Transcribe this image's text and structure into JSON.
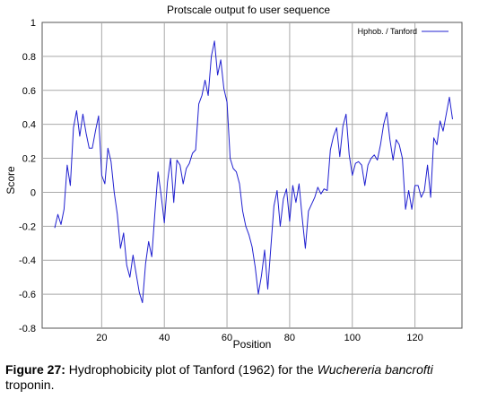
{
  "chart_data": {
    "type": "line",
    "title": "Protscale output fo user sequence",
    "xlabel": "Position",
    "ylabel": "Score",
    "xlim": [
      1,
      135
    ],
    "ylim": [
      -0.8,
      1.0
    ],
    "x_ticks": [
      20,
      40,
      60,
      80,
      100,
      120
    ],
    "y_ticks": [
      -0.8,
      -0.6,
      -0.4,
      -0.2,
      0,
      0.2,
      0.4,
      0.6,
      0.8,
      1.0
    ],
    "y_tick_labels": [
      "-0.8",
      "-0.6",
      "-0.4",
      "-0.2",
      "0",
      "0.2",
      "0.4",
      "0.6",
      "0.8",
      "1"
    ],
    "grid": true,
    "legend_position": "top-right",
    "series": [
      {
        "name": "Hphob. / Tanford",
        "color": "#2020d0",
        "x": [
          5,
          6,
          7,
          8,
          9,
          10,
          11,
          12,
          13,
          14,
          15,
          16,
          17,
          18,
          19,
          20,
          21,
          22,
          23,
          24,
          25,
          26,
          27,
          28,
          29,
          30,
          31,
          32,
          33,
          34,
          35,
          36,
          37,
          38,
          39,
          40,
          41,
          42,
          43,
          44,
          45,
          46,
          47,
          48,
          49,
          50,
          51,
          52,
          53,
          54,
          55,
          56,
          57,
          58,
          59,
          60,
          61,
          62,
          63,
          64,
          65,
          66,
          67,
          68,
          69,
          70,
          71,
          72,
          73,
          74,
          75,
          76,
          77,
          78,
          79,
          80,
          81,
          82,
          83,
          84,
          85,
          86,
          87,
          88,
          89,
          90,
          91,
          92,
          93,
          94,
          95,
          96,
          97,
          98,
          99,
          100,
          101,
          102,
          103,
          104,
          105,
          106,
          107,
          108,
          109,
          110,
          111,
          112,
          113,
          114,
          115,
          116,
          117,
          118,
          119,
          120,
          121,
          122,
          123,
          124,
          125,
          126,
          127,
          128,
          129,
          130,
          131,
          132
        ],
        "values": [
          -0.21,
          -0.13,
          -0.19,
          -0.1,
          0.16,
          0.04,
          0.38,
          0.48,
          0.33,
          0.46,
          0.35,
          0.26,
          0.26,
          0.36,
          0.45,
          0.1,
          0.05,
          0.26,
          0.18,
          0.0,
          -0.13,
          -0.33,
          -0.24,
          -0.43,
          -0.5,
          -0.37,
          -0.48,
          -0.59,
          -0.65,
          -0.42,
          -0.29,
          -0.38,
          -0.12,
          0.12,
          -0.02,
          -0.18,
          0.06,
          0.2,
          -0.06,
          0.19,
          0.16,
          0.05,
          0.14,
          0.17,
          0.23,
          0.25,
          0.52,
          0.57,
          0.66,
          0.57,
          0.8,
          0.89,
          0.69,
          0.78,
          0.61,
          0.53,
          0.2,
          0.14,
          0.12,
          0.05,
          -0.11,
          -0.2,
          -0.25,
          -0.32,
          -0.44,
          -0.6,
          -0.49,
          -0.34,
          -0.57,
          -0.32,
          -0.08,
          0.01,
          -0.2,
          -0.04,
          0.02,
          -0.17,
          0.04,
          -0.06,
          0.05,
          -0.15,
          -0.33,
          -0.11,
          -0.07,
          -0.03,
          0.03,
          -0.01,
          0.02,
          0.01,
          0.25,
          0.33,
          0.38,
          0.21,
          0.39,
          0.46,
          0.22,
          0.1,
          0.17,
          0.18,
          0.16,
          0.04,
          0.16,
          0.2,
          0.22,
          0.19,
          0.28,
          0.4,
          0.47,
          0.31,
          0.19,
          0.31,
          0.28,
          0.2,
          -0.1,
          0.01,
          -0.1,
          0.04,
          0.04,
          -0.03,
          0.01,
          0.16,
          -0.03,
          0.32,
          0.28,
          0.42,
          0.36,
          0.46,
          0.56,
          0.43
        ]
      }
    ]
  },
  "caption": {
    "label": "Figure 27:",
    "text_before": " Hydrophobicity plot of Tanford (1962) for the ",
    "species": "Wuchereria bancrofti",
    "text_after": " troponin."
  }
}
